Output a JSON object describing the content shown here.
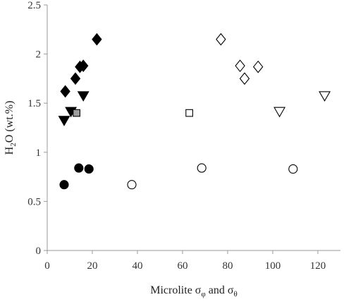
{
  "chart_data": {
    "type": "scatter",
    "xlabel": "Microlite σφ and σθ",
    "ylabel": "H2O (wt.%)",
    "xlim": [
      0,
      130
    ],
    "ylim": [
      0,
      2.5
    ],
    "xticks": [
      "0",
      "20",
      "40",
      "60",
      "80",
      "100",
      "120"
    ],
    "yticks": [
      "0",
      "0.5",
      "1",
      "1.5",
      "2",
      "2.5"
    ],
    "grid": false,
    "legend": "none",
    "series": [
      {
        "marker": "diamond",
        "fill": "#000000",
        "points": [
          [
            8,
            1.62
          ],
          [
            12.5,
            1.75
          ],
          [
            14.5,
            1.87
          ],
          [
            16,
            1.88
          ],
          [
            22,
            2.15
          ]
        ]
      },
      {
        "marker": "triangle-down",
        "fill": "#000000",
        "points": [
          [
            7.5,
            1.32
          ],
          [
            10.5,
            1.41
          ],
          [
            16,
            1.57
          ]
        ]
      },
      {
        "marker": "square",
        "fill": "#9e9e9e",
        "points": [
          [
            13,
            1.4
          ]
        ]
      },
      {
        "marker": "circle",
        "fill": "#000000",
        "points": [
          [
            7.5,
            0.67
          ],
          [
            14,
            0.84
          ],
          [
            18.5,
            0.83
          ]
        ]
      },
      {
        "marker": "diamond",
        "fill": "#ffffff",
        "points": [
          [
            77,
            2.15
          ],
          [
            85.5,
            1.88
          ],
          [
            87.5,
            1.75
          ],
          [
            93.5,
            1.87
          ]
        ]
      },
      {
        "marker": "triangle-down",
        "fill": "#ffffff",
        "points": [
          [
            103,
            1.41
          ],
          [
            123,
            1.57
          ]
        ]
      },
      {
        "marker": "square",
        "fill": "#ffffff",
        "points": [
          [
            63,
            1.4
          ]
        ]
      },
      {
        "marker": "circle",
        "fill": "#ffffff",
        "points": [
          [
            37.5,
            0.67
          ],
          [
            68.5,
            0.84
          ],
          [
            109,
            0.83
          ]
        ]
      }
    ]
  }
}
